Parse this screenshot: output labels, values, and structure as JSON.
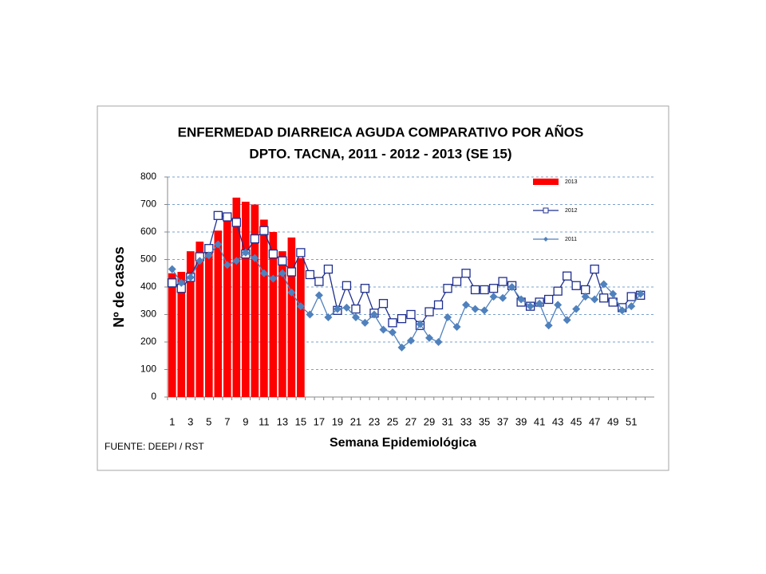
{
  "chart_data": {
    "type": "combo",
    "title": "ENFERMEDAD DIARREICA AGUDA  COMPARATIVO POR  AÑOS",
    "subtitle": "DPTO. TACNA, 2011 - 2012 - 2013 (SE  15)",
    "y_label": "Nº de casos",
    "x_label": "Semana Epidemiológica",
    "source": "FUENTE: DEEPI  / RST",
    "categories": [
      1,
      null,
      3,
      null,
      5,
      null,
      7,
      null,
      9,
      null,
      11,
      null,
      13,
      null,
      15,
      null,
      17,
      null,
      19,
      null,
      21,
      null,
      23,
      null,
      25,
      null,
      27,
      null,
      29,
      null,
      31,
      null,
      33,
      null,
      35,
      null,
      37,
      null,
      39,
      null,
      41,
      null,
      43,
      null,
      45,
      null,
      47,
      null,
      49,
      null,
      51,
      null,
      null
    ],
    "ylim": [
      0,
      800
    ],
    "yticks": [
      0,
      100,
      200,
      300,
      400,
      500,
      600,
      700,
      800
    ],
    "grid": true,
    "legend": "top-right",
    "series": [
      {
        "name": "2013",
        "type": "bar",
        "color": "#ff0000",
        "values": [
          450,
          455,
          530,
          565,
          540,
          605,
          640,
          725,
          710,
          700,
          645,
          600,
          530,
          580,
          505,
          null,
          null,
          null,
          null,
          null,
          null,
          null,
          null,
          null,
          null,
          null,
          null,
          null,
          null,
          null,
          null,
          null,
          null,
          null,
          null,
          null,
          null,
          null,
          null,
          null,
          null,
          null,
          null,
          null,
          null,
          null,
          null,
          null,
          null,
          null,
          null,
          null,
          null
        ]
      },
      {
        "name": "2012",
        "type": "line",
        "marker": "square",
        "color": "#1f2f8f",
        "values": [
          415,
          395,
          435,
          510,
          540,
          660,
          655,
          635,
          520,
          575,
          605,
          520,
          495,
          455,
          525,
          445,
          420,
          465,
          315,
          405,
          320,
          395,
          305,
          340,
          270,
          285,
          300,
          260,
          310,
          335,
          395,
          420,
          450,
          390,
          390,
          395,
          420,
          405,
          345,
          330,
          345,
          355,
          385,
          440,
          405,
          390,
          465,
          360,
          345,
          325,
          365,
          370,
          null
        ]
      },
      {
        "name": "2011",
        "type": "line",
        "marker": "diamond",
        "color": "#4f81bd",
        "values": [
          465,
          415,
          435,
          495,
          515,
          555,
          480,
          495,
          525,
          505,
          450,
          430,
          450,
          380,
          330,
          300,
          370,
          290,
          320,
          325,
          290,
          270,
          300,
          245,
          235,
          180,
          205,
          265,
          215,
          200,
          290,
          255,
          335,
          320,
          315,
          365,
          360,
          400,
          355,
          330,
          340,
          260,
          335,
          280,
          320,
          365,
          355,
          410,
          375,
          315,
          330,
          375,
          null
        ]
      }
    ]
  }
}
